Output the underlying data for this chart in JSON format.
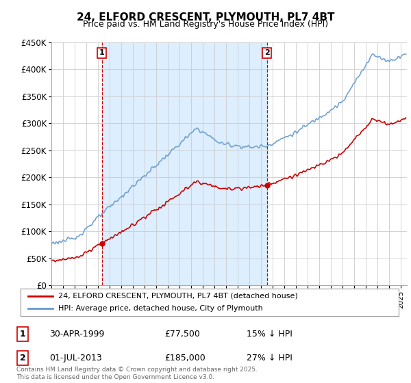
{
  "title": "24, ELFORD CRESCENT, PLYMOUTH, PL7 4BT",
  "subtitle": "Price paid vs. HM Land Registry's House Price Index (HPI)",
  "legend_line1": "24, ELFORD CRESCENT, PLYMOUTH, PL7 4BT (detached house)",
  "legend_line2": "HPI: Average price, detached house, City of Plymouth",
  "annotation1_date": "30-APR-1999",
  "annotation1_price": "£77,500",
  "annotation1_hpi": "15% ↓ HPI",
  "annotation2_date": "01-JUL-2013",
  "annotation2_price": "£185,000",
  "annotation2_hpi": "27% ↓ HPI",
  "footnote": "Contains HM Land Registry data © Crown copyright and database right 2025.\nThis data is licensed under the Open Government Licence v3.0.",
  "sale1_year": 1999.33,
  "sale1_price": 77500,
  "sale2_year": 2013.5,
  "sale2_price": 185000,
  "hpi_color": "#6699cc",
  "price_color": "#cc0000",
  "annotation_box_color": "#cc0000",
  "shade_color": "#ddeeff",
  "ylim_min": 0,
  "ylim_max": 450000,
  "background_color": "#ffffff",
  "grid_color": "#cccccc"
}
